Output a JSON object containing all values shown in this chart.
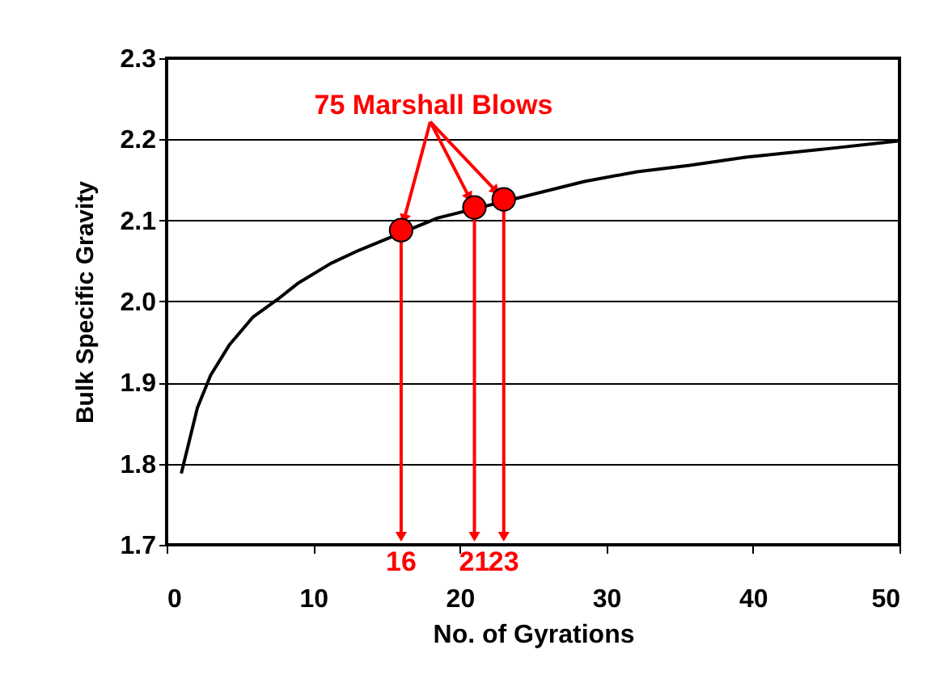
{
  "chart_data": {
    "type": "line",
    "xlabel": "No. of Gyrations",
    "ylabel": "Bulk Specific Gravity",
    "xlim": [
      0,
      50
    ],
    "ylim": [
      1.7,
      2.3
    ],
    "xticks": [
      0,
      10,
      20,
      30,
      40,
      50
    ],
    "yticks": [
      1.7,
      1.8,
      1.9,
      {
        "value": 2,
        "label": "2.0"
      },
      2.1,
      2.2,
      2.3
    ],
    "grid": "y",
    "series": [
      {
        "color": "#000000",
        "marker": "none",
        "x": [
          1.0,
          2.1,
          3.0,
          4.3,
          5.9,
          7.6,
          9.0,
          11.2,
          13.1,
          18.5,
          28.5,
          32.1,
          35.7,
          39.5,
          44.9,
          50
        ],
        "values": [
          1.788,
          1.869,
          1.909,
          1.947,
          1.981,
          2.003,
          2.023,
          2.047,
          2.063,
          2.103,
          2.148,
          2.16,
          2.168,
          2.178,
          2.188,
          2.198
        ]
      },
      {
        "type": "scatter",
        "color": "#ff0000",
        "marker": "circle",
        "x": [
          16,
          21,
          23
        ],
        "values": [
          2.088,
          2.116,
          2.126
        ]
      }
    ],
    "annotations": [
      {
        "text": "75 Marshall Blows",
        "x": 16,
        "y": 2.088
      },
      "16",
      "21",
      "23"
    ]
  }
}
